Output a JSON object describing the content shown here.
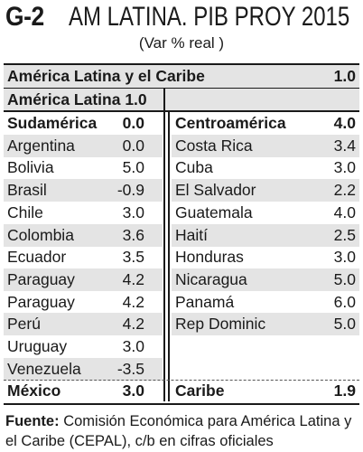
{
  "title": {
    "code": "G-2",
    "text": "AM LATINA. PIB PROY 2015"
  },
  "subtitle": "(Var % real )",
  "summary": [
    {
      "label": "América Latina y el Caribe",
      "value": "1.0"
    },
    {
      "label": "América Latina 1.0",
      "value": ""
    }
  ],
  "left_header": {
    "label": "Sudamérica",
    "value": "0.0"
  },
  "left_rows": [
    {
      "label": "Argentina",
      "value": "0.0"
    },
    {
      "label": "Bolivia",
      "value": "5.0"
    },
    {
      "label": "Brasil",
      "value": "-0.9"
    },
    {
      "label": "Chile",
      "value": "3.0"
    },
    {
      "label": "Colombia",
      "value": "3.6"
    },
    {
      "label": "Ecuador",
      "value": "3.5"
    },
    {
      "label": "Paraguay",
      "value": "4.2"
    },
    {
      "label": "Paraguay",
      "value": "4.2"
    },
    {
      "label": "Perú",
      "value": "4.2"
    },
    {
      "label": "Uruguay",
      "value": "3.0"
    },
    {
      "label": "Venezuela",
      "value": "-3.5"
    }
  ],
  "left_footer": {
    "label": "México",
    "value": "3.0"
  },
  "right_header": {
    "label": "Centroamérica",
    "value": "4.0"
  },
  "right_rows": [
    {
      "label": "Costa Rica",
      "value": "3.4"
    },
    {
      "label": "Cuba",
      "value": "3.0"
    },
    {
      "label": "El Salvador",
      "value": "2.2"
    },
    {
      "label": "Guatemala",
      "value": "4.0"
    },
    {
      "label": "Haití",
      "value": "2.5"
    },
    {
      "label": "Honduras",
      "value": "3.0"
    },
    {
      "label": "Nicaragua",
      "value": "5.0"
    },
    {
      "label": "Panamá",
      "value": "6.0"
    },
    {
      "label": "Rep Dominic",
      "value": "5.0"
    }
  ],
  "right_footer": {
    "label": "Caribe",
    "value": "1.9"
  },
  "footer": {
    "source_label": "Fuente:",
    "source_text": "Comisión Económica para América Latina y el Caribe (CEPAL), c/b en cifras oficiales"
  },
  "colors": {
    "shade": "#e4e4e4",
    "ink": "#1a1a1a"
  }
}
